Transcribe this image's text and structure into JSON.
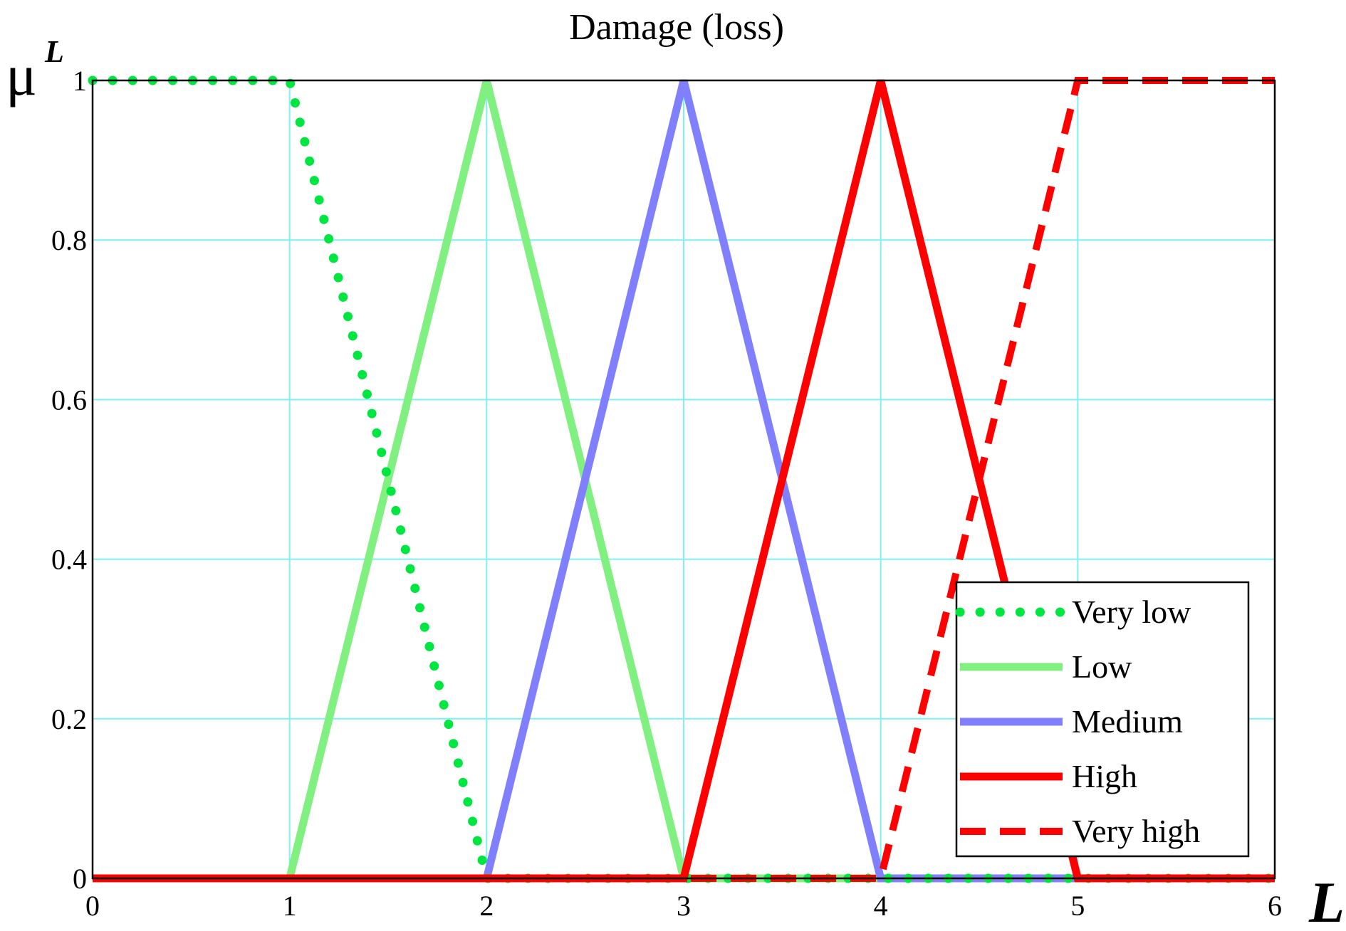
{
  "chart_data": {
    "type": "line",
    "title": "Damage (loss)",
    "xlabel": "L",
    "ylabel_main": "μ",
    "ylabel_sup": "L",
    "xlim": [
      0,
      6
    ],
    "ylim": [
      0,
      1
    ],
    "x_ticks": [
      "0",
      "1",
      "2",
      "3",
      "4",
      "5",
      "6"
    ],
    "y_ticks": [
      "0",
      "0.2",
      "0.4",
      "0.6",
      "0.8",
      "1"
    ],
    "grid": true,
    "legend_position": "bottom-right",
    "series": [
      {
        "name": "Very low",
        "color": "#00e640",
        "style": "dotted",
        "points": [
          [
            0,
            1
          ],
          [
            1,
            1
          ],
          [
            2,
            0
          ],
          [
            6,
            0
          ]
        ]
      },
      {
        "name": "Low",
        "color": "#80f080",
        "style": "solid",
        "points": [
          [
            0,
            0
          ],
          [
            1,
            0
          ],
          [
            2,
            1
          ],
          [
            3,
            0
          ],
          [
            6,
            0
          ]
        ]
      },
      {
        "name": "Medium",
        "color": "#8080ff",
        "style": "solid",
        "points": [
          [
            0,
            0
          ],
          [
            2,
            0
          ],
          [
            3,
            1
          ],
          [
            4,
            0
          ],
          [
            6,
            0
          ]
        ]
      },
      {
        "name": "High",
        "color": "#ff0000",
        "style": "solid",
        "points": [
          [
            0,
            0
          ],
          [
            3,
            0
          ],
          [
            4,
            1
          ],
          [
            5,
            0
          ],
          [
            6,
            0
          ]
        ]
      },
      {
        "name": "Very high",
        "color": "#ff0000",
        "style": "dashed",
        "points": [
          [
            0,
            0
          ],
          [
            4,
            0
          ],
          [
            5,
            1
          ],
          [
            6,
            1
          ]
        ]
      }
    ]
  }
}
